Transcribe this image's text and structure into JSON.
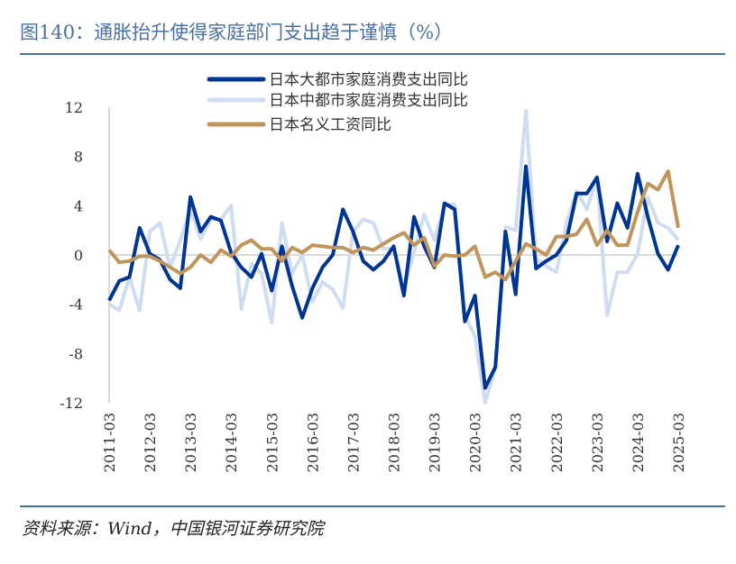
{
  "title": "图140：通胀抬升使得家庭部门支出趋于谨慎（%）",
  "source": "资料来源：Wind，中国银河证券研究院",
  "chart_data": {
    "type": "line",
    "title": "图140：通胀抬升使得家庭部门支出趋于谨慎（%）",
    "xlabel": "",
    "ylabel": "",
    "ylim": [
      -12,
      12
    ],
    "yticks": [
      12,
      8,
      4,
      0,
      -4,
      -8,
      -12
    ],
    "xtick_labels": [
      "2011-03",
      "2012-03",
      "2013-03",
      "2014-03",
      "2015-03",
      "2016-03",
      "2017-03",
      "2018-03",
      "2019-03",
      "2020-03",
      "2021-03",
      "2022-03",
      "2023-03",
      "2024-03",
      "2025-03"
    ],
    "x_frequency": "quarterly",
    "x_start": "2011-03",
    "x_end": "2025-03",
    "grid": false,
    "legend_position": "top",
    "series": [
      {
        "name": "日本大都市家庭消费支出同比",
        "color": "#003594",
        "values": [
          -3.7,
          -2.1,
          -1.8,
          2.2,
          0.1,
          -0.4,
          -2.0,
          -2.7,
          4.7,
          1.9,
          3.1,
          2.8,
          0.2,
          -1.0,
          -1.8,
          0.1,
          -2.9,
          0.7,
          -2.5,
          -5.1,
          -2.7,
          -1.0,
          0.0,
          3.7,
          1.9,
          -0.5,
          -1.2,
          -0.5,
          0.7,
          -3.3,
          3.1,
          0.7,
          -1.0,
          4.2,
          3.7,
          -5.4,
          -3.3,
          -10.8,
          -9.1,
          1.9,
          -3.2,
          7.2,
          -1.1,
          -0.5,
          0.0,
          1.2,
          5.0,
          5.0,
          6.3,
          1.1,
          4.2,
          2.2,
          6.6,
          3.1,
          0.1,
          -1.2,
          0.8
        ]
      },
      {
        "name": "日本中都市家庭消费支出同比",
        "color": "#cfdcf2",
        "values": [
          -4.0,
          -4.5,
          -1.8,
          -4.5,
          1.9,
          2.6,
          -1.0,
          1.2,
          3.7,
          1.3,
          2.9,
          2.9,
          4.0,
          -4.4,
          -0.7,
          -1.5,
          -5.5,
          2.6,
          -1.5,
          0.0,
          -3.8,
          -2.2,
          -2.8,
          -4.3,
          1.9,
          2.9,
          2.6,
          0.5,
          0.5,
          -2.7,
          0.2,
          3.3,
          1.2,
          4.1,
          4.1,
          -4.9,
          -6.6,
          -12.0,
          -9.1,
          2.3,
          2.0,
          11.7,
          -0.3,
          -0.9,
          -1.4,
          2.6,
          5.2,
          3.7,
          6.3,
          -4.9,
          -1.4,
          -1.4,
          0.1,
          4.7,
          2.6,
          2.2,
          1.2
        ]
      },
      {
        "name": "日本名义工资同比",
        "color": "#c0955c",
        "values": [
          0.4,
          -0.6,
          -0.5,
          -0.1,
          -0.1,
          -0.5,
          -1.0,
          -1.5,
          -1.0,
          0.0,
          -0.6,
          0.4,
          -0.1,
          0.8,
          1.2,
          0.5,
          0.5,
          -0.5,
          0.6,
          0.2,
          0.8,
          0.7,
          0.6,
          0.6,
          0.2,
          0.6,
          0.4,
          0.9,
          1.4,
          1.8,
          0.8,
          1.4,
          -0.9,
          0.0,
          -0.1,
          0.0,
          0.7,
          -1.8,
          -1.4,
          -2.0,
          -0.5,
          0.9,
          0.5,
          0.0,
          1.5,
          1.5,
          1.7,
          2.9,
          0.8,
          2.0,
          0.8,
          0.8,
          3.5,
          5.8,
          5.3,
          6.8,
          2.2
        ]
      }
    ]
  }
}
